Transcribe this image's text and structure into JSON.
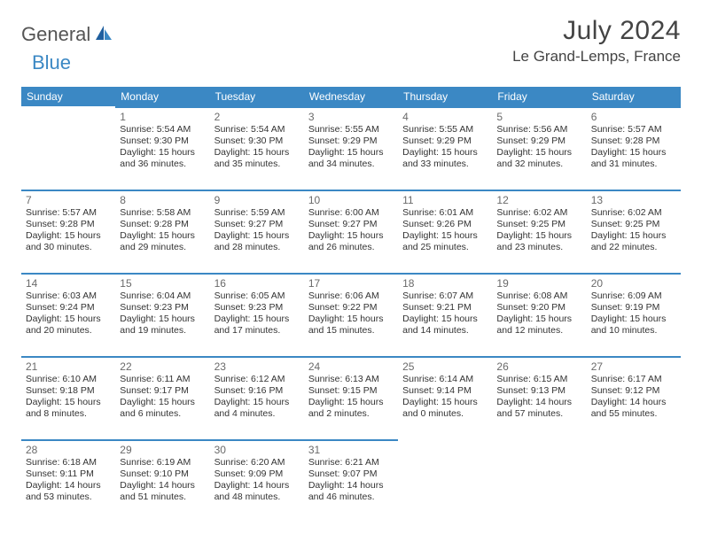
{
  "logo": {
    "part1": "General",
    "part2": "Blue"
  },
  "title": "July 2024",
  "location": "Le Grand-Lemps, France",
  "colors": {
    "brand": "#3b88c4",
    "header_bg": "#3b88c4",
    "header_text": "#ffffff",
    "text": "#333333",
    "daynum": "#6a6a6a",
    "title_text": "#444444"
  },
  "weekdays": [
    "Sunday",
    "Monday",
    "Tuesday",
    "Wednesday",
    "Thursday",
    "Friday",
    "Saturday"
  ],
  "start_offset": 1,
  "days": [
    {
      "n": 1,
      "sunrise": "5:54 AM",
      "sunset": "9:30 PM",
      "dh": 15,
      "dm": 36
    },
    {
      "n": 2,
      "sunrise": "5:54 AM",
      "sunset": "9:30 PM",
      "dh": 15,
      "dm": 35
    },
    {
      "n": 3,
      "sunrise": "5:55 AM",
      "sunset": "9:29 PM",
      "dh": 15,
      "dm": 34
    },
    {
      "n": 4,
      "sunrise": "5:55 AM",
      "sunset": "9:29 PM",
      "dh": 15,
      "dm": 33
    },
    {
      "n": 5,
      "sunrise": "5:56 AM",
      "sunset": "9:29 PM",
      "dh": 15,
      "dm": 32
    },
    {
      "n": 6,
      "sunrise": "5:57 AM",
      "sunset": "9:28 PM",
      "dh": 15,
      "dm": 31
    },
    {
      "n": 7,
      "sunrise": "5:57 AM",
      "sunset": "9:28 PM",
      "dh": 15,
      "dm": 30
    },
    {
      "n": 8,
      "sunrise": "5:58 AM",
      "sunset": "9:28 PM",
      "dh": 15,
      "dm": 29
    },
    {
      "n": 9,
      "sunrise": "5:59 AM",
      "sunset": "9:27 PM",
      "dh": 15,
      "dm": 28
    },
    {
      "n": 10,
      "sunrise": "6:00 AM",
      "sunset": "9:27 PM",
      "dh": 15,
      "dm": 26
    },
    {
      "n": 11,
      "sunrise": "6:01 AM",
      "sunset": "9:26 PM",
      "dh": 15,
      "dm": 25
    },
    {
      "n": 12,
      "sunrise": "6:02 AM",
      "sunset": "9:25 PM",
      "dh": 15,
      "dm": 23
    },
    {
      "n": 13,
      "sunrise": "6:02 AM",
      "sunset": "9:25 PM",
      "dh": 15,
      "dm": 22
    },
    {
      "n": 14,
      "sunrise": "6:03 AM",
      "sunset": "9:24 PM",
      "dh": 15,
      "dm": 20
    },
    {
      "n": 15,
      "sunrise": "6:04 AM",
      "sunset": "9:23 PM",
      "dh": 15,
      "dm": 19
    },
    {
      "n": 16,
      "sunrise": "6:05 AM",
      "sunset": "9:23 PM",
      "dh": 15,
      "dm": 17
    },
    {
      "n": 17,
      "sunrise": "6:06 AM",
      "sunset": "9:22 PM",
      "dh": 15,
      "dm": 15
    },
    {
      "n": 18,
      "sunrise": "6:07 AM",
      "sunset": "9:21 PM",
      "dh": 15,
      "dm": 14
    },
    {
      "n": 19,
      "sunrise": "6:08 AM",
      "sunset": "9:20 PM",
      "dh": 15,
      "dm": 12
    },
    {
      "n": 20,
      "sunrise": "6:09 AM",
      "sunset": "9:19 PM",
      "dh": 15,
      "dm": 10
    },
    {
      "n": 21,
      "sunrise": "6:10 AM",
      "sunset": "9:18 PM",
      "dh": 15,
      "dm": 8
    },
    {
      "n": 22,
      "sunrise": "6:11 AM",
      "sunset": "9:17 PM",
      "dh": 15,
      "dm": 6
    },
    {
      "n": 23,
      "sunrise": "6:12 AM",
      "sunset": "9:16 PM",
      "dh": 15,
      "dm": 4
    },
    {
      "n": 24,
      "sunrise": "6:13 AM",
      "sunset": "9:15 PM",
      "dh": 15,
      "dm": 2
    },
    {
      "n": 25,
      "sunrise": "6:14 AM",
      "sunset": "9:14 PM",
      "dh": 15,
      "dm": 0
    },
    {
      "n": 26,
      "sunrise": "6:15 AM",
      "sunset": "9:13 PM",
      "dh": 14,
      "dm": 57
    },
    {
      "n": 27,
      "sunrise": "6:17 AM",
      "sunset": "9:12 PM",
      "dh": 14,
      "dm": 55
    },
    {
      "n": 28,
      "sunrise": "6:18 AM",
      "sunset": "9:11 PM",
      "dh": 14,
      "dm": 53
    },
    {
      "n": 29,
      "sunrise": "6:19 AM",
      "sunset": "9:10 PM",
      "dh": 14,
      "dm": 51
    },
    {
      "n": 30,
      "sunrise": "6:20 AM",
      "sunset": "9:09 PM",
      "dh": 14,
      "dm": 48
    },
    {
      "n": 31,
      "sunrise": "6:21 AM",
      "sunset": "9:07 PM",
      "dh": 14,
      "dm": 46
    }
  ],
  "labels": {
    "sunrise": "Sunrise:",
    "sunset": "Sunset:",
    "daylight": "Daylight:",
    "hours": "hours",
    "and": "and",
    "minutes": "minutes."
  }
}
